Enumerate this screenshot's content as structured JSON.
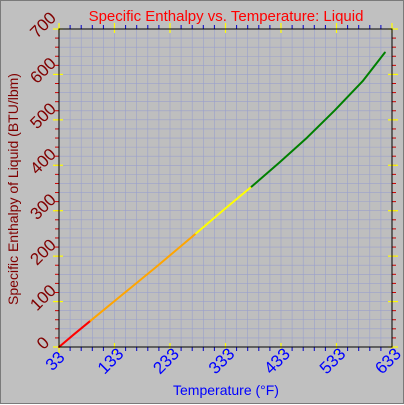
{
  "colors": {
    "background": "#c0c0c0",
    "plot_background": "#bebebe",
    "title": "#ff0000",
    "x_axis": "#0000ff",
    "y_axis": "#800000",
    "grid": "#9aa0cc",
    "segment_1": "#ff0000",
    "segment_2": "#ffa500",
    "segment_3": "#ffff00",
    "segment_4": "#008000"
  },
  "chart_data": {
    "type": "line",
    "title": "Specific Enthalpy vs. Temperature: Liquid",
    "xlabel": "Temperature (°F)",
    "ylabel": "Specific Enthalpy of Liquid (BTU/lbm)",
    "xlim": [
      33,
      633
    ],
    "ylim": [
      0,
      700
    ],
    "x_ticks": [
      "33",
      "133",
      "233",
      "333",
      "433",
      "533",
      "633"
    ],
    "y_ticks": [
      "0",
      "100",
      "200",
      "300",
      "400",
      "500",
      "600",
      "700"
    ],
    "grid": true,
    "legend": "none",
    "series": [
      {
        "color": "#ff0000",
        "x": [
          33,
          60,
          90
        ],
        "y": [
          0,
          28,
          58
        ]
      },
      {
        "color": "#ffa500",
        "x": [
          90,
          150,
          210,
          280
        ],
        "y": [
          58,
          118,
          178,
          250
        ]
      },
      {
        "color": "#ffff00",
        "x": [
          280,
          330,
          380
        ],
        "y": [
          250,
          302,
          353
        ]
      },
      {
        "color": "#008000",
        "x": [
          380,
          430,
          480,
          530,
          580,
          620
        ],
        "y": [
          353,
          406,
          461,
          521,
          585,
          648
        ]
      }
    ]
  }
}
